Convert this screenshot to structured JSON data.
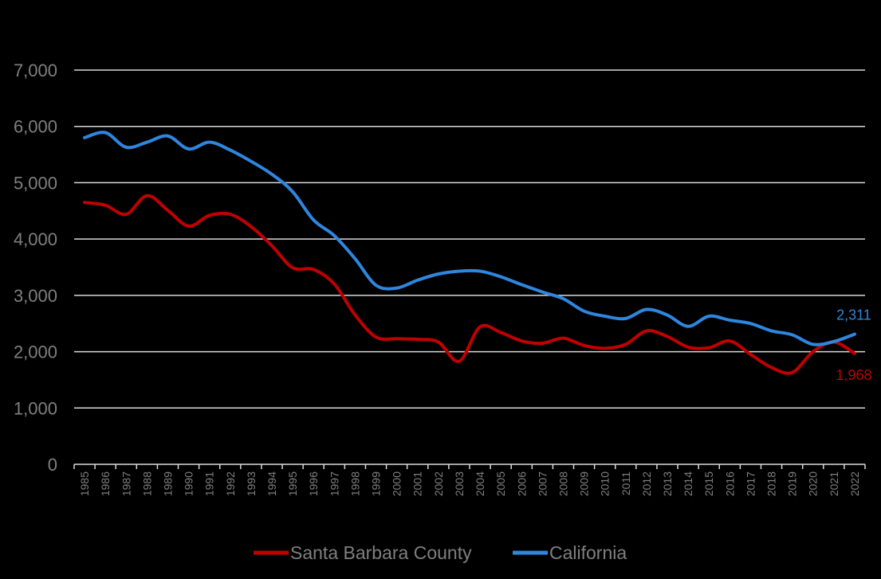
{
  "chart_data": {
    "type": "line",
    "title": "",
    "xlabel": "",
    "ylabel": "",
    "ylim": [
      0,
      7000
    ],
    "yticks": [
      "0",
      "1,000",
      "2,000",
      "3,000",
      "4,000",
      "5,000",
      "6,000",
      "7,000"
    ],
    "ytick_values": [
      0,
      1000,
      2000,
      3000,
      4000,
      5000,
      6000,
      7000
    ],
    "grid": true,
    "legend_position": "bottom",
    "x": [
      "1985",
      "1986",
      "1987",
      "1988",
      "1989",
      "1990",
      "1991",
      "1992",
      "1993",
      "1994",
      "1995",
      "1996",
      "1997",
      "1998",
      "1999",
      "2000",
      "2001",
      "2002",
      "2003",
      "2004",
      "2005",
      "2006",
      "2007",
      "2008",
      "2009",
      "2010",
      "2011",
      "2012",
      "2013",
      "2014",
      "2015",
      "2016",
      "2017",
      "2018",
      "2019",
      "2020",
      "2021",
      "2022"
    ],
    "series": [
      {
        "name": "Santa Barbara County",
        "color": "#c00000",
        "values": [
          4650,
          4600,
          4440,
          4770,
          4510,
          4230,
          4420,
          4440,
          4220,
          3880,
          3490,
          3460,
          3200,
          2650,
          2260,
          2230,
          2220,
          2170,
          1830,
          2440,
          2340,
          2190,
          2150,
          2240,
          2110,
          2060,
          2130,
          2370,
          2270,
          2080,
          2070,
          2190,
          1950,
          1720,
          1630,
          2000,
          2170,
          1968
        ],
        "end_label": "1,968"
      },
      {
        "name": "California",
        "color": "#2e86de",
        "values": [
          5800,
          5890,
          5630,
          5720,
          5830,
          5600,
          5720,
          5580,
          5380,
          5150,
          4840,
          4340,
          4060,
          3650,
          3180,
          3130,
          3270,
          3380,
          3430,
          3430,
          3330,
          3190,
          3060,
          2940,
          2720,
          2630,
          2590,
          2750,
          2650,
          2450,
          2630,
          2560,
          2500,
          2370,
          2300,
          2130,
          2180,
          2311
        ],
        "end_label": "2,311"
      }
    ]
  }
}
